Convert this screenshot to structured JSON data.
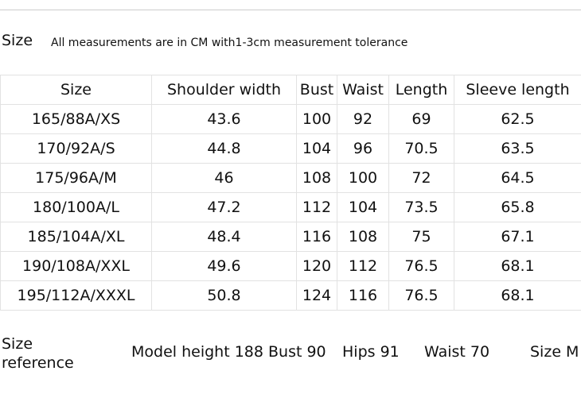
{
  "header": {
    "title": "Size",
    "note": "All measurements are in CM with1-3cm measurement tolerance"
  },
  "table": {
    "columns": [
      "Size",
      "Shoulder width",
      "Bust",
      "Waist",
      "Length",
      "Sleeve length"
    ],
    "rows": [
      [
        "165/88A/XS",
        "43.6",
        "100",
        "92",
        "69",
        "62.5"
      ],
      [
        "170/92A/S",
        "44.8",
        "104",
        "96",
        "70.5",
        "63.5"
      ],
      [
        "175/96A/M",
        "46",
        "108",
        "100",
        "72",
        "64.5"
      ],
      [
        "180/100A/L",
        "47.2",
        "112",
        "104",
        "73.5",
        "65.8"
      ],
      [
        "185/104A/XL",
        "48.4",
        "116",
        "108",
        "75",
        "67.1"
      ],
      [
        "190/108A/XXL",
        "49.6",
        "120",
        "112",
        "76.5",
        "68.1"
      ],
      [
        "195/112A/XXXL",
        "50.8",
        "124",
        "116",
        "76.5",
        "68.1"
      ]
    ]
  },
  "footer": {
    "label": "Size reference",
    "items": [
      "Model height 188 Bust 90",
      "Hips 91",
      "Waist 70",
      "Size M"
    ]
  }
}
